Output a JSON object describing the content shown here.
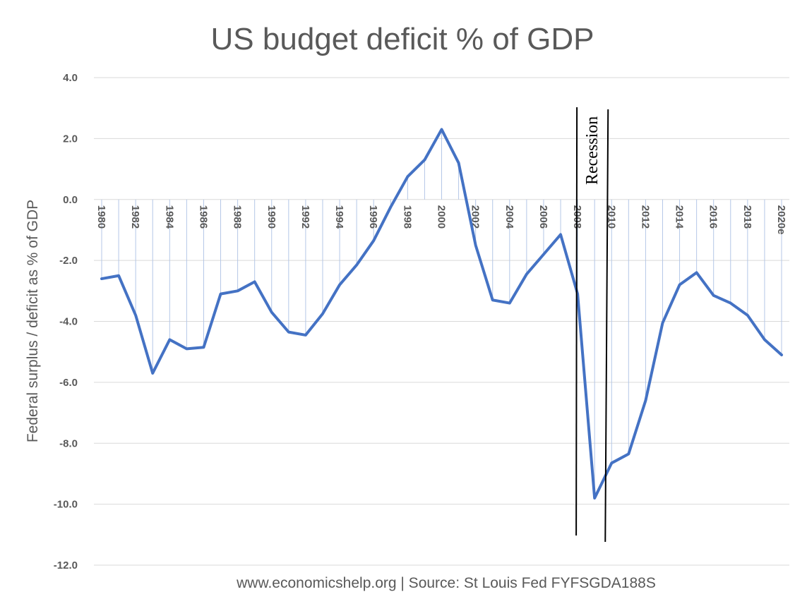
{
  "chart_data": {
    "type": "line",
    "title": "US budget deficit % of GDP",
    "ylabel": "Federal surplus / deficit as % of GDP",
    "source": "www.economicshelp.org  | Source: St Louis Fed FYFSGDA188S",
    "ylim": [
      -12,
      4
    ],
    "yticks": [
      "4.0",
      "2.0",
      "0.0",
      "-2.0",
      "-4.0",
      "-6.0",
      "-8.0",
      "-10.0",
      "-12.0"
    ],
    "ytick_values": [
      4,
      2,
      0,
      -2,
      -4,
      -6,
      -8,
      -10,
      -12
    ],
    "x": [
      "1980",
      "1981",
      "1982",
      "1983",
      "1984",
      "1985",
      "1986",
      "1987",
      "1988",
      "1989",
      "1990",
      "1991",
      "1992",
      "1993",
      "1994",
      "1995",
      "1996",
      "1997",
      "1998",
      "1999",
      "2000",
      "2001",
      "2002",
      "2003",
      "2004",
      "2005",
      "2006",
      "2007",
      "2008",
      "2009",
      "2010",
      "2011",
      "2012",
      "2013",
      "2014",
      "2015",
      "2016",
      "2017",
      "2018",
      "2019",
      "2020e"
    ],
    "xtick_labels": [
      "1980",
      "",
      "1982",
      "",
      "1984",
      "",
      "1986",
      "",
      "1988",
      "",
      "1990",
      "",
      "1992",
      "",
      "1994",
      "",
      "1996",
      "",
      "1998",
      "",
      "2000",
      "",
      "2002",
      "",
      "2004",
      "",
      "2006",
      "",
      "2008",
      "",
      "2010",
      "",
      "2012",
      "",
      "2014",
      "",
      "2016",
      "",
      "2018",
      "",
      "2020e"
    ],
    "series": [
      {
        "name": "",
        "color": "#4472C4",
        "values": [
          -2.6,
          -2.5,
          -3.8,
          -5.7,
          -4.6,
          -4.9,
          -4.85,
          -3.1,
          -3.0,
          -2.7,
          -3.7,
          -4.35,
          -4.45,
          -3.75,
          -2.8,
          -2.15,
          -1.35,
          -0.25,
          0.75,
          1.3,
          2.3,
          1.2,
          -1.5,
          -3.3,
          -3.4,
          -2.45,
          -1.8,
          -1.15,
          -3.1,
          -9.8,
          -8.65,
          -8.35,
          -6.6,
          -4.05,
          -2.8,
          -2.4,
          -3.15,
          -3.4,
          -3.8,
          -4.6,
          -5.1
        ]
      }
    ],
    "grid": true,
    "legend": "none",
    "annotations": [
      {
        "text": "Recession",
        "x_start": "2008",
        "x_end": "2010"
      }
    ]
  }
}
